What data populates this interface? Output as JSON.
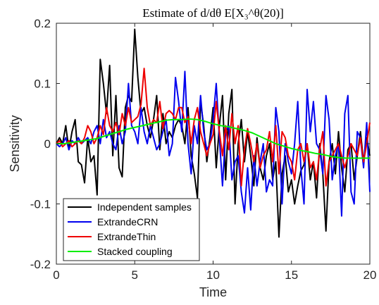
{
  "chart_data": {
    "type": "line",
    "title": "Estimate of d/dθ E[X₃^θ(20)]",
    "xlabel": "Time",
    "ylabel": "Sensitivity",
    "xlim": [
      0,
      20
    ],
    "ylim": [
      -0.2,
      0.2
    ],
    "xticks": [
      0,
      5,
      10,
      15,
      20
    ],
    "yticks": [
      -0.2,
      -0.1,
      0,
      0.1,
      0.2
    ],
    "xtick_labels": [
      "0",
      "5",
      "10",
      "15",
      "20"
    ],
    "ytick_labels": [
      "-0.2",
      "-0.1",
      "0",
      "0.1",
      "0.2"
    ],
    "grid": false,
    "legend_position": "bottom-left",
    "series": [
      {
        "name": "Independent samples",
        "color": "#000000",
        "x": [
          0,
          0.2,
          0.4,
          0.6,
          0.8,
          1.0,
          1.2,
          1.4,
          1.6,
          1.8,
          2.0,
          2.2,
          2.4,
          2.6,
          2.8,
          3.0,
          3.2,
          3.4,
          3.6,
          3.8,
          4.0,
          4.2,
          4.4,
          4.6,
          4.8,
          5.0,
          5.2,
          5.4,
          5.6,
          5.8,
          6.0,
          6.2,
          6.4,
          6.6,
          6.8,
          7.0,
          7.2,
          7.4,
          7.6,
          7.8,
          8.0,
          8.2,
          8.4,
          8.6,
          8.8,
          9.0,
          9.2,
          9.4,
          9.6,
          9.8,
          10.0,
          10.2,
          10.4,
          10.6,
          10.8,
          11.0,
          11.2,
          11.4,
          11.6,
          11.8,
          12.0,
          12.2,
          12.4,
          12.6,
          12.8,
          13.0,
          13.2,
          13.4,
          13.6,
          13.8,
          14.0,
          14.2,
          14.4,
          14.6,
          14.8,
          15.0,
          15.2,
          15.4,
          15.6,
          15.8,
          16.0,
          16.2,
          16.4,
          16.6,
          16.8,
          17.0,
          17.2,
          17.4,
          17.6,
          17.8,
          18.0,
          18.2,
          18.4,
          18.6,
          18.8,
          19.0,
          19.2,
          19.4,
          19.6,
          19.8,
          20.0
        ],
        "y": [
          0,
          0.01,
          0.0,
          0.03,
          -0.01,
          0.02,
          0.04,
          -0.03,
          -0.035,
          -0.065,
          0.01,
          -0.03,
          -0.02,
          -0.085,
          0.14,
          0.1,
          0.05,
          0.13,
          -0.02,
          0.08,
          -0.04,
          -0.055,
          0.06,
          0.08,
          0.07,
          0.19,
          0.11,
          0.05,
          0.06,
          0.03,
          0.01,
          0.04,
          0.08,
          -0.01,
          0.05,
          0.0,
          0.02,
          0.01,
          0.03,
          0.04,
          0.03,
          0.0,
          0.06,
          -0.02,
          -0.05,
          -0.09,
          0.07,
          0.03,
          -0.03,
          0.01,
          0.06,
          -0.04,
          0.03,
          0.08,
          -0.06,
          0.05,
          0.09,
          -0.1,
          0.0,
          0.04,
          -0.03,
          0.02,
          -0.02,
          -0.07,
          0.01,
          -0.04,
          -0.06,
          -0.02,
          0.0,
          -0.06,
          -0.03,
          -0.155,
          -0.05,
          -0.02,
          -0.08,
          -0.06,
          -0.1,
          -0.07,
          -0.045,
          -0.035,
          0.0,
          -0.06,
          -0.03,
          -0.09,
          0.0,
          -0.05,
          -0.145,
          -0.03,
          0.0,
          -0.05,
          0.02,
          -0.04,
          -0.08,
          -0.01,
          0.0,
          -0.06,
          -0.02,
          0.02,
          -0.03,
          0.01,
          -0.02
        ],
        "comment": ""
      },
      {
        "name": "ExtrandeCRN",
        "color": "#0000ee",
        "x": [
          0,
          0.2,
          0.4,
          0.6,
          0.8,
          1.0,
          1.2,
          1.4,
          1.6,
          1.8,
          2.0,
          2.2,
          2.4,
          2.6,
          2.8,
          3.0,
          3.2,
          3.4,
          3.6,
          3.8,
          4.0,
          4.2,
          4.4,
          4.6,
          4.8,
          5.0,
          5.2,
          5.4,
          5.6,
          5.8,
          6.0,
          6.2,
          6.4,
          6.6,
          6.8,
          7.0,
          7.2,
          7.4,
          7.6,
          7.8,
          8.0,
          8.2,
          8.4,
          8.6,
          8.8,
          9.0,
          9.2,
          9.4,
          9.6,
          9.8,
          10.0,
          10.2,
          10.4,
          10.6,
          10.8,
          11.0,
          11.2,
          11.4,
          11.6,
          11.8,
          12.0,
          12.2,
          12.4,
          12.6,
          12.8,
          13.0,
          13.2,
          13.4,
          13.6,
          13.8,
          14.0,
          14.2,
          14.4,
          14.6,
          14.8,
          15.0,
          15.2,
          15.4,
          15.6,
          15.8,
          16.0,
          16.2,
          16.4,
          16.6,
          16.8,
          17.0,
          17.2,
          17.4,
          17.6,
          17.8,
          18.0,
          18.2,
          18.4,
          18.6,
          18.8,
          19.0,
          19.2,
          19.4,
          19.6,
          19.8,
          20.0
        ],
        "y": [
          0,
          -0.005,
          0.0,
          0.01,
          -0.01,
          0.005,
          0.0,
          0.01,
          0.0,
          0.005,
          0.01,
          0.0,
          0.02,
          0.03,
          0.0,
          0.04,
          0.01,
          0.02,
          0.0,
          -0.01,
          0.03,
          0.0,
          0.02,
          0.1,
          0.03,
          0.02,
          0.0,
          0.06,
          0.02,
          0.0,
          0.03,
          0.01,
          -0.01,
          0.0,
          0.02,
          0.04,
          -0.02,
          0.0,
          0.11,
          0.07,
          0.02,
          0.12,
          0.0,
          -0.05,
          0.03,
          0.0,
          0.08,
          0.02,
          -0.01,
          0.0,
          0.04,
          0.1,
          0.01,
          -0.07,
          0.02,
          0.03,
          -0.06,
          -0.03,
          -0.02,
          -0.08,
          -0.115,
          -0.04,
          -0.11,
          -0.02,
          -0.07,
          -0.03,
          0.0,
          -0.08,
          -0.06,
          -0.07,
          0.06,
          0.02,
          -0.1,
          0.0,
          -0.03,
          -0.05,
          0.0,
          0.07,
          -0.04,
          -0.1,
          0.09,
          0.02,
          0.07,
          0.0,
          -0.01,
          -0.05,
          0.08,
          0.04,
          -0.06,
          -0.02,
          0.0,
          -0.12,
          0.05,
          0.08,
          -0.08,
          -0.1,
          0.02,
          0.01,
          -0.04,
          0.035,
          -0.08
        ],
        "comment": ""
      },
      {
        "name": "ExtrandeThin",
        "color": "#ee0000",
        "x": [
          0,
          0.2,
          0.4,
          0.6,
          0.8,
          1.0,
          1.2,
          1.4,
          1.6,
          1.8,
          2.0,
          2.2,
          2.4,
          2.6,
          2.8,
          3.0,
          3.2,
          3.4,
          3.6,
          3.8,
          4.0,
          4.2,
          4.4,
          4.6,
          4.8,
          5.0,
          5.2,
          5.4,
          5.6,
          5.8,
          6.0,
          6.2,
          6.4,
          6.6,
          6.8,
          7.0,
          7.2,
          7.4,
          7.6,
          7.8,
          8.0,
          8.2,
          8.4,
          8.6,
          8.8,
          9.0,
          9.2,
          9.4,
          9.6,
          9.8,
          10.0,
          10.2,
          10.4,
          10.6,
          10.8,
          11.0,
          11.2,
          11.4,
          11.6,
          11.8,
          12.0,
          12.2,
          12.4,
          12.6,
          12.8,
          13.0,
          13.2,
          13.4,
          13.6,
          13.8,
          14.0,
          14.2,
          14.4,
          14.6,
          14.8,
          15.0,
          15.2,
          15.4,
          15.6,
          15.8,
          16.0,
          16.2,
          16.4,
          16.6,
          16.8,
          17.0,
          17.2,
          17.4,
          17.6,
          17.8,
          18.0,
          18.2,
          18.4,
          18.6,
          18.8,
          19.0,
          19.2,
          19.4,
          19.6,
          19.8,
          20.0
        ],
        "y": [
          0,
          0.005,
          -0.005,
          0.0,
          0.005,
          -0.005,
          0.0,
          0.005,
          0.0,
          0.01,
          0.03,
          0.02,
          0.0,
          0.01,
          0.03,
          0.015,
          0.06,
          0.03,
          0.02,
          0.035,
          0.015,
          0.05,
          0.03,
          0.06,
          0.035,
          0.04,
          0.045,
          0.065,
          0.125,
          0.06,
          0.03,
          0.04,
          0.035,
          0.07,
          0.025,
          0.05,
          0.055,
          0.05,
          0.04,
          0.06,
          0.06,
          0.035,
          0.045,
          0.0,
          0.04,
          0.06,
          0.02,
          0.0,
          -0.02,
          0.0,
          0.015,
          0.07,
          0.02,
          -0.02,
          0.03,
          -0.01,
          0.05,
          0.0,
          0.03,
          -0.07,
          -0.01,
          0.025,
          0.0,
          -0.03,
          0.0,
          -0.04,
          -0.02,
          -0.01,
          0.02,
          -0.03,
          0.03,
          -0.05,
          0.02,
          0.01,
          -0.02,
          -0.03,
          -0.06,
          -0.01,
          0.0,
          -0.03,
          0.0,
          -0.04,
          -0.03,
          -0.06,
          -0.01,
          0.02,
          -0.07,
          -0.03,
          -0.02,
          -0.01,
          0.0,
          -0.02,
          -0.04,
          -0.02,
          0.0,
          -0.01,
          -0.02,
          0.01,
          -0.03,
          0.0,
          0.035
        ],
        "comment": ""
      },
      {
        "name": "Stacked coupling",
        "color": "#00ee00",
        "x": [
          0,
          0.5,
          1.0,
          1.5,
          2.0,
          2.5,
          3.0,
          3.5,
          4.0,
          4.5,
          5.0,
          5.5,
          6.0,
          6.5,
          7.0,
          7.5,
          8.0,
          8.5,
          9.0,
          9.5,
          10.0,
          10.5,
          11.0,
          11.5,
          12.0,
          12.5,
          13.0,
          13.5,
          14.0,
          14.5,
          15.0,
          15.5,
          16.0,
          16.5,
          17.0,
          17.5,
          18.0,
          18.5,
          19.0,
          19.5,
          20.0
        ],
        "y": [
          0,
          0.0,
          0.002,
          0.004,
          0.006,
          0.008,
          0.012,
          0.016,
          0.02,
          0.024,
          0.027,
          0.03,
          0.033,
          0.036,
          0.039,
          0.04,
          0.04,
          0.041,
          0.04,
          0.037,
          0.033,
          0.03,
          0.028,
          0.025,
          0.022,
          0.018,
          0.012,
          0.006,
          0.0,
          -0.004,
          -0.008,
          -0.011,
          -0.013,
          -0.016,
          -0.018,
          -0.021,
          -0.023,
          -0.024,
          -0.024,
          -0.024,
          -0.024
        ],
        "comment": ""
      }
    ]
  }
}
